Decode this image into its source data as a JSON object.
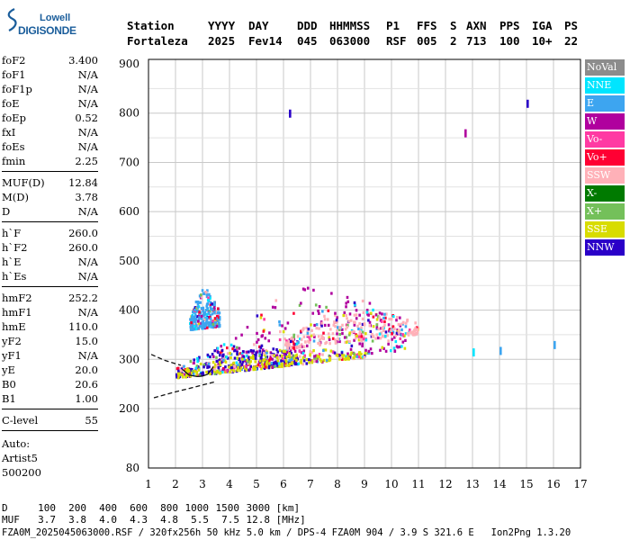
{
  "logo": {
    "line1": "Lowell",
    "line2": "DIGISONDE"
  },
  "header": {
    "labels": [
      "Station",
      "YYYY",
      "DAY",
      "DDD",
      "HHMMSS",
      "P1",
      "FFS",
      "S",
      "AXN",
      "PPS",
      "IGA",
      "PS"
    ],
    "values": [
      "Fortaleza",
      "2025",
      "Fev14",
      "045",
      "063000",
      "RSF",
      "005",
      "2",
      "713",
      "100",
      "10+",
      "22"
    ]
  },
  "params": [
    {
      "name": "foF2",
      "value": "3.400"
    },
    {
      "name": "foF1",
      "value": "N/A"
    },
    {
      "name": "foF1p",
      "value": "N/A"
    },
    {
      "name": "foE",
      "value": "N/A"
    },
    {
      "name": "foEp",
      "value": "0.52"
    },
    {
      "name": "fxI",
      "value": "N/A"
    },
    {
      "name": "foEs",
      "value": "N/A"
    },
    {
      "name": "fmin",
      "value": "2.25"
    },
    {
      "name": "MUF(D)",
      "value": "12.84"
    },
    {
      "name": "M(D)",
      "value": "3.78"
    },
    {
      "name": "D",
      "value": "N/A"
    },
    {
      "name": "h`F",
      "value": "260.0"
    },
    {
      "name": "h`F2",
      "value": "260.0"
    },
    {
      "name": "h`E",
      "value": "N/A"
    },
    {
      "name": "h`Es",
      "value": "N/A"
    },
    {
      "name": "hmF2",
      "value": "252.2"
    },
    {
      "name": "hmF1",
      "value": "N/A"
    },
    {
      "name": "hmE",
      "value": "110.0"
    },
    {
      "name": "yF2",
      "value": "15.0"
    },
    {
      "name": "yF1",
      "value": "N/A"
    },
    {
      "name": "yE",
      "value": "20.0"
    },
    {
      "name": "B0",
      "value": "20.6"
    },
    {
      "name": "B1",
      "value": "1.00"
    },
    {
      "name": "C-level",
      "value": "55"
    }
  ],
  "autoscale": {
    "label": "Auto:",
    "software": "Artist5",
    "version": "500200"
  },
  "legend": [
    {
      "label": "NoVal",
      "color": "#8c8c8c"
    },
    {
      "label": "NNE",
      "color": "#00e5ff"
    },
    {
      "label": "E",
      "color": "#3da5f0"
    },
    {
      "label": "W",
      "color": "#b0009e"
    },
    {
      "label": "Vo-",
      "color": "#ff3aa3"
    },
    {
      "label": "Vo+",
      "color": "#ff0033"
    },
    {
      "label": "SSW",
      "color": "#ffb1b8"
    },
    {
      "label": "X-",
      "color": "#007a00"
    },
    {
      "label": "X+",
      "color": "#74c05a"
    },
    {
      "label": "SSE",
      "color": "#d8dc00"
    },
    {
      "label": "NNW",
      "color": "#2a00c8"
    }
  ],
  "footer": {
    "d_label": "D",
    "d_values": [
      "100",
      "200",
      "400",
      "600",
      "800",
      "1000",
      "1500",
      "3000"
    ],
    "d_unit": "[km]",
    "muf_label": "MUF",
    "muf_values": [
      "3.7",
      "3.8",
      "4.0",
      "4.3",
      "4.8",
      "5.5",
      "7.5",
      "12.8"
    ],
    "muf_unit": "[MHz]",
    "file_info": "FZA0M_2025045063000.RSF / 320fx256h 50 kHz 5.0 km / DPS-4 FZA0M 904 / 3.9 S 321.6 E   Ion2Png 1.3.20"
  },
  "chart_data": {
    "type": "scatter",
    "x_ticks": [
      1,
      2,
      3,
      4,
      5,
      6,
      7,
      8,
      9,
      10,
      11,
      12,
      13,
      14,
      15,
      16,
      17
    ],
    "y_ticks": [
      200,
      300,
      400,
      500,
      600,
      700,
      800,
      900
    ],
    "y_tick_bottom": "80",
    "xlim": [
      1,
      17
    ],
    "ylim": [
      80,
      900
    ],
    "grid": true,
    "legend_position": "right",
    "traces": [
      {
        "name": "F2 trace",
        "x": [
          2.25,
          2.5,
          2.8,
          3.0,
          3.2,
          3.4
        ],
        "y": [
          280,
          268,
          265,
          266,
          270,
          285
        ]
      },
      {
        "name": "extrapolation",
        "x": [
          1.2,
          2.0,
          2.8,
          3.5
        ],
        "y": [
          222,
          234,
          245,
          255
        ]
      },
      {
        "name": "upper branch",
        "x": [
          1.1,
          1.6,
          2.2
        ],
        "y": [
          310,
          298,
          288
        ]
      }
    ],
    "echo_regions": [
      {
        "mode": "W",
        "x_range": [
          3.5,
          10.5
        ],
        "y_range": [
          270,
          420
        ]
      },
      {
        "mode": "NNW",
        "x_range": [
          2.0,
          6.5
        ],
        "y_range": [
          265,
          320
        ]
      },
      {
        "mode": "E",
        "x_range": [
          2.5,
          3.6
        ],
        "y_range": [
          360,
          440
        ]
      },
      {
        "mode": "SSW",
        "x_range": [
          6.0,
          11.0
        ],
        "y_range": [
          300,
          360
        ]
      },
      {
        "mode": "SSE",
        "x_range": [
          2.0,
          9.0
        ],
        "y_range": [
          265,
          300
        ]
      }
    ],
    "isolated_echoes": [
      {
        "mode": "NNW",
        "x": 15.0,
        "y": 820
      },
      {
        "mode": "W",
        "x": 12.7,
        "y": 760
      },
      {
        "mode": "NNW",
        "x": 6.2,
        "y": 800
      },
      {
        "mode": "NNE",
        "x": 13.0,
        "y": 315
      },
      {
        "mode": "E",
        "x": 14.0,
        "y": 318
      },
      {
        "mode": "E",
        "x": 16.0,
        "y": 330
      }
    ]
  }
}
